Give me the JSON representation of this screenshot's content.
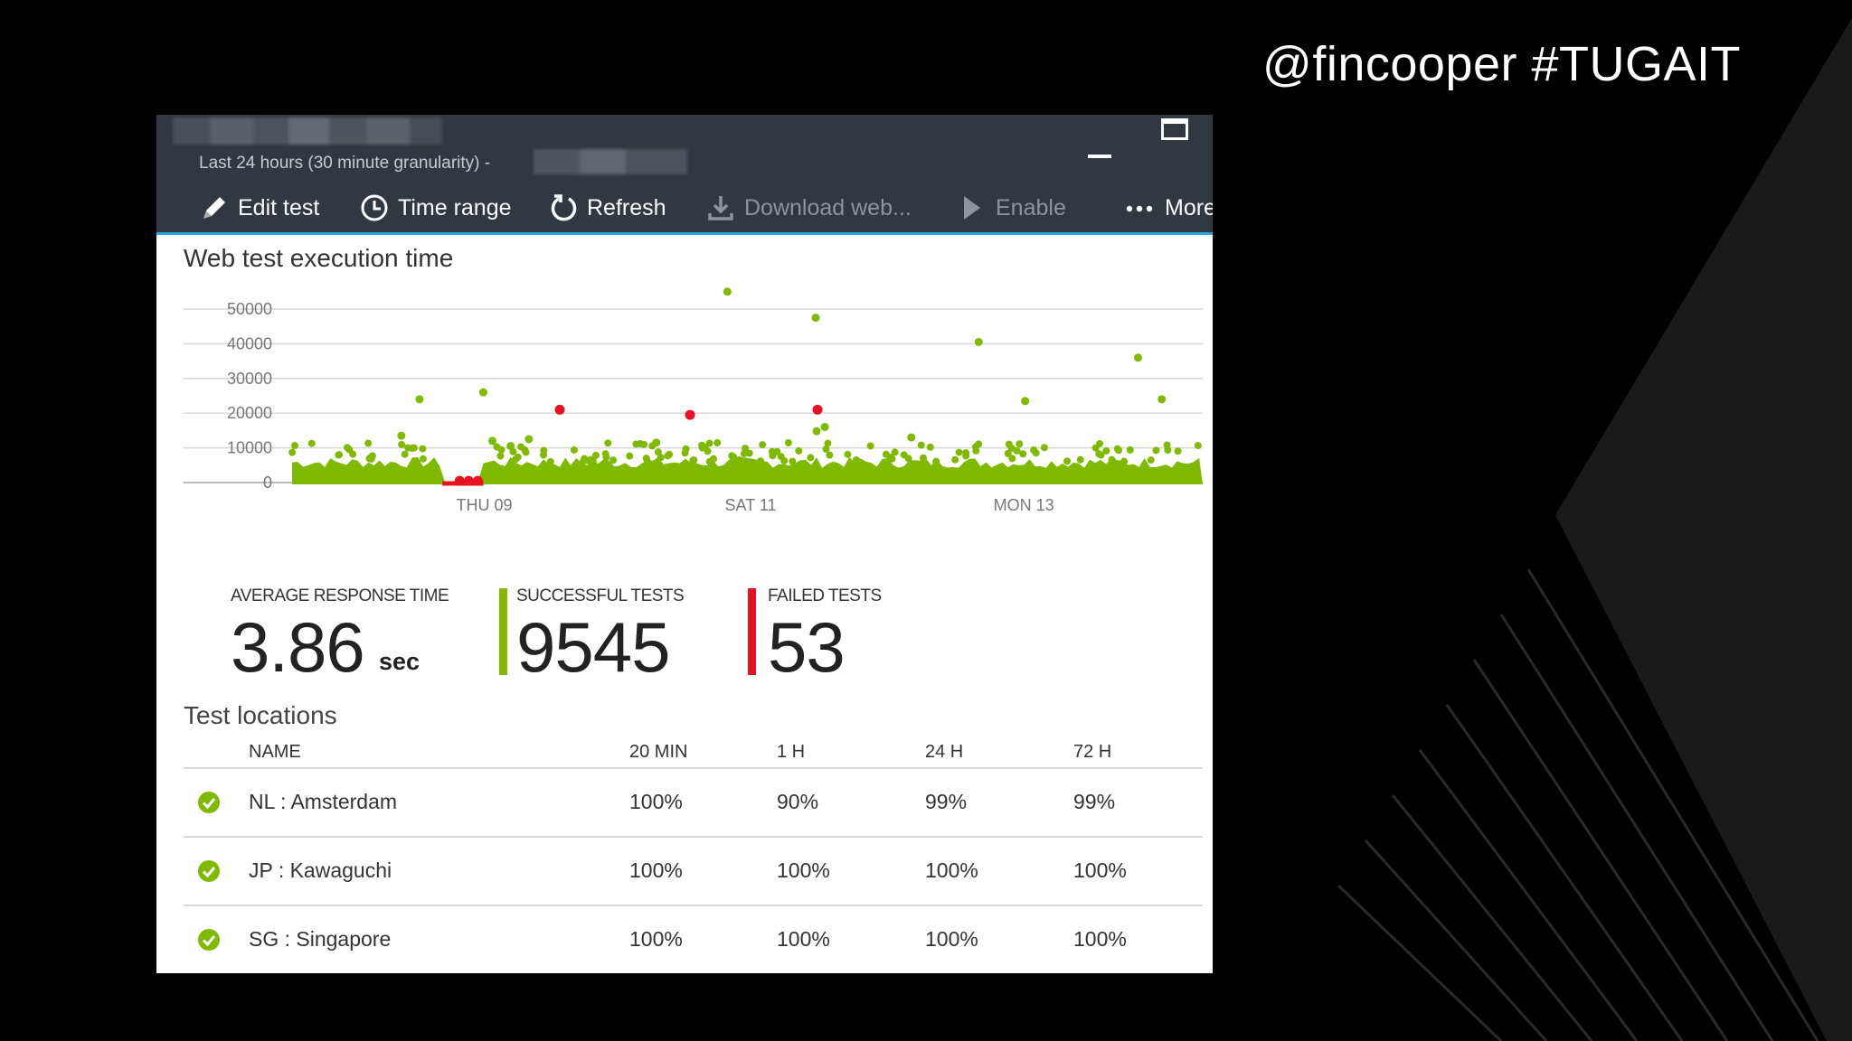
{
  "slide": {
    "handle": "@fincooper #TUGAIT"
  },
  "blade": {
    "subtitle": "Last 24 hours (30 minute granularity) -",
    "toolbar": {
      "edit_label": "Edit test",
      "time_range_label": "Time range",
      "refresh_label": "Refresh",
      "download_label": "Download web...",
      "enable_label": "Enable",
      "more_label": "More"
    }
  },
  "chart_data": {
    "type": "scatter",
    "title": "Web test execution time",
    "xlabel": "",
    "ylabel": "",
    "yticks": [
      "50000",
      "40000",
      "30000",
      "20000",
      "10000",
      "0"
    ],
    "ytick_values": [
      50000,
      40000,
      30000,
      20000,
      10000,
      0
    ],
    "ylim": [
      0,
      50000
    ],
    "xticks": [
      "THU 09",
      "SAT 11",
      "MON 13"
    ],
    "xtick_positions": [
      0.21,
      0.505,
      0.8
    ],
    "xlim": [
      0,
      1
    ],
    "colors": {
      "success": "#7fba00",
      "failed": "#e81123"
    },
    "series": [
      {
        "name": "Successful",
        "color": "#7fba00",
        "points": [
          [
            0.14,
            24000
          ],
          [
            0.21,
            26000
          ],
          [
            0.478,
            55000
          ],
          [
            0.575,
            47500
          ],
          [
            0.754,
            40500
          ],
          [
            0.805,
            23500
          ],
          [
            0.929,
            36000
          ],
          [
            0.955,
            24000
          ],
          [
            0.585,
            16000
          ],
          [
            0.576,
            14800
          ],
          [
            0.26,
            12500
          ],
          [
            0.24,
            10500
          ],
          [
            0.12,
            13500
          ],
          [
            0.22,
            12000
          ],
          [
            0.4,
            11500
          ],
          [
            0.68,
            13000
          ]
        ]
      },
      {
        "name": "Failed",
        "color": "#e81123",
        "points": [
          [
            0.294,
            21000
          ],
          [
            0.437,
            19500
          ],
          [
            0.577,
            21000
          ],
          [
            0.194,
            500
          ],
          [
            0.204,
            500
          ],
          [
            0.184,
            500
          ]
        ]
      }
    ]
  },
  "kpis": {
    "avg_label": "AVERAGE RESPONSE TIME",
    "avg_value": "3.86",
    "avg_unit": "sec",
    "success_label": "SUCCESSFUL TESTS",
    "success_value": "9545",
    "failed_label": "FAILED TESTS",
    "failed_value": "53"
  },
  "locations": {
    "title": "Test locations",
    "columns": [
      "NAME",
      "20 MIN",
      "1 H",
      "24 H",
      "72 H"
    ],
    "rows": [
      {
        "name": "NL : Amsterdam",
        "v20": "100%",
        "v1h": "90%",
        "v24h": "99%",
        "v72h": "99%"
      },
      {
        "name": "JP : Kawaguchi",
        "v20": "100%",
        "v1h": "100%",
        "v24h": "100%",
        "v72h": "100%"
      },
      {
        "name": "SG : Singapore",
        "v20": "100%",
        "v1h": "100%",
        "v24h": "100%",
        "v72h": "100%"
      }
    ]
  }
}
